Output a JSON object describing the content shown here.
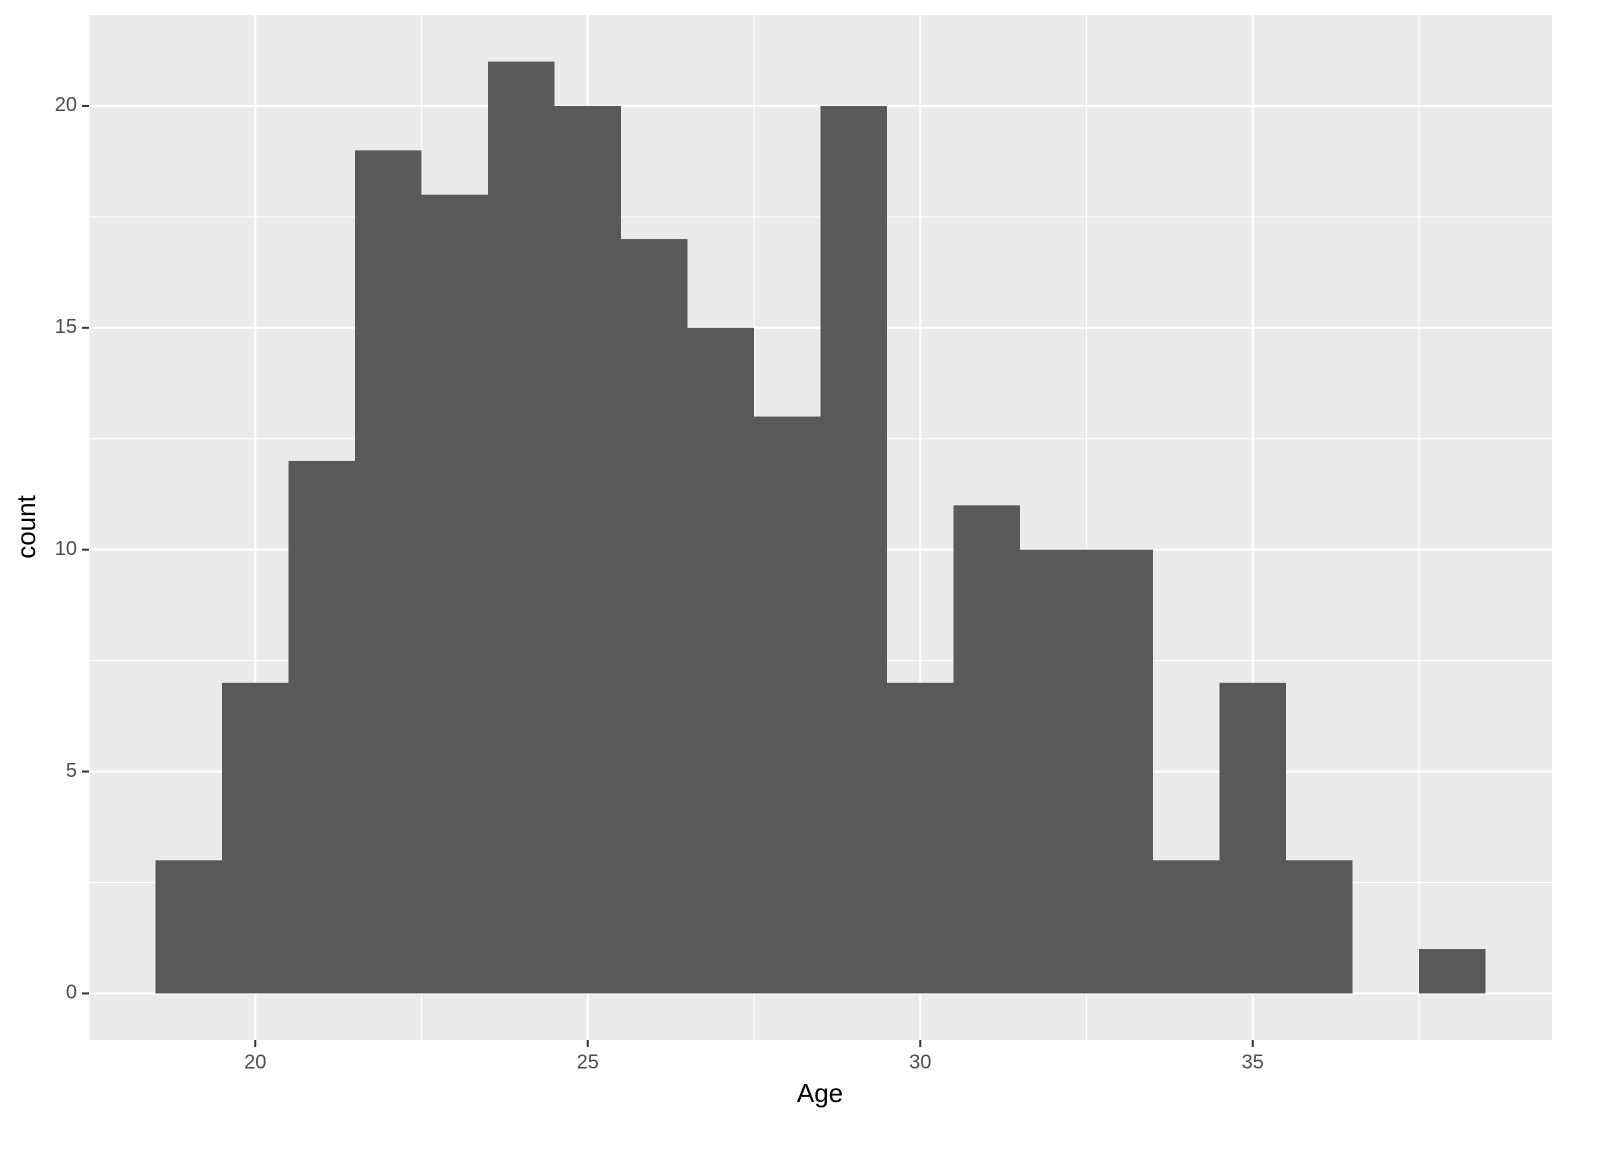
{
  "chart_data": {
    "type": "histogram",
    "x_label": "Age",
    "y_label": "count",
    "bins": [
      18.5,
      19.5,
      20.5,
      21.5,
      22.5,
      23.5,
      24.5,
      25.5,
      26.5,
      27.5,
      28.5,
      29.5,
      30.5,
      31.5,
      32.5,
      33.5,
      34.5,
      35.5,
      36.5,
      37.5,
      38.5
    ],
    "values": [
      3,
      7,
      12,
      19,
      18,
      21,
      20,
      17,
      15,
      13,
      20,
      7,
      11,
      10,
      10,
      3,
      7,
      3,
      0,
      1
    ],
    "color": "#595959",
    "xlim": [
      17.5,
      39.5
    ],
    "xticks": [
      20,
      25,
      30,
      35
    ],
    "ylim": [
      -1.05,
      22.05
    ],
    "yticks": [
      0,
      5,
      10,
      15,
      20
    ],
    "grid": true
  }
}
